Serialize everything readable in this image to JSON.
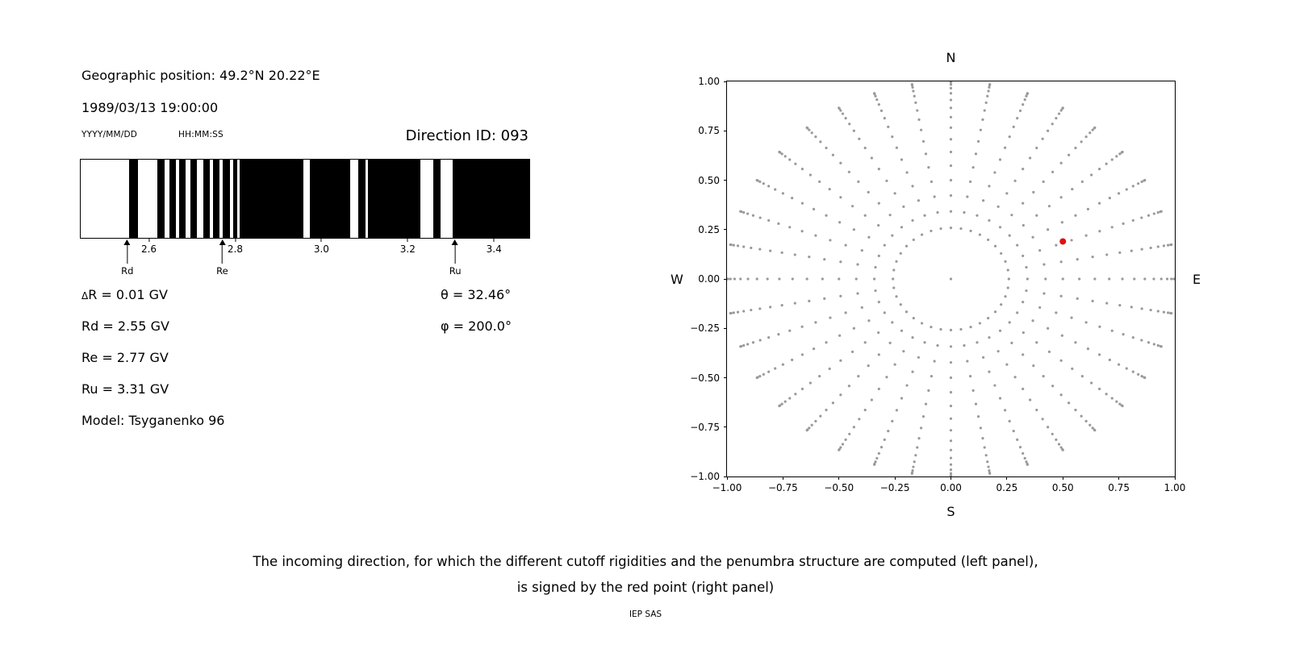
{
  "left_panel": {
    "geo_position": "Geographic position: 49.2°N 20.22°E",
    "datetime": "1989/03/13 19:00:00",
    "date_format_label": "YYYY/MM/DD",
    "time_format_label": "HH:MM:SS",
    "direction_id": "Direction ID: 093",
    "stats": {
      "delta_symbol": "Δ",
      "delta_r_rest": "R = 0.01 GV",
      "rd": "Rd = 2.55 GV",
      "re": "Re = 2.77 GV",
      "ru": "Ru = 3.31 GV",
      "model": "Model: Tsyganenko 96",
      "theta": "θ = 32.46°",
      "phi": "φ = 200.0°"
    }
  },
  "caption": {
    "line1": "The incoming direction, for which the different cutoff rigidities and the penumbra structure are computed (left panel),",
    "line2": "is signed by the red point (right panel)",
    "credit": "IEP SAS"
  },
  "chart_data": [
    {
      "type": "bar",
      "title": "",
      "xlabel": "",
      "xlim": [
        2.44,
        3.48
      ],
      "x_ticks": [
        2.6,
        2.8,
        3.0,
        3.2,
        3.4
      ],
      "x_tick_labels": [
        "2.6",
        "2.8",
        "3.0",
        "3.2",
        "3.4"
      ],
      "black_bands": [
        [
          2.553,
          2.573
        ],
        [
          2.618,
          2.634
        ],
        [
          2.645,
          2.66
        ],
        [
          2.668,
          2.684
        ],
        [
          2.695,
          2.71
        ],
        [
          2.725,
          2.74
        ],
        [
          2.747,
          2.762
        ],
        [
          2.769,
          2.786
        ],
        [
          2.793,
          2.803
        ],
        [
          2.808,
          2.957
        ],
        [
          2.972,
          3.065
        ],
        [
          3.084,
          3.1
        ],
        [
          3.106,
          3.227
        ],
        [
          3.257,
          3.275
        ],
        [
          3.303,
          3.48
        ]
      ],
      "markers": [
        {
          "label": "Rd",
          "x": 2.55
        },
        {
          "label": "Re",
          "x": 2.77
        },
        {
          "label": "Ru",
          "x": 3.31
        }
      ],
      "band_color": "#000000",
      "background_color": "#ffffff"
    },
    {
      "type": "scatter",
      "title": "",
      "xlim": [
        -1,
        1
      ],
      "ylim": [
        -1,
        1
      ],
      "x_ticks": [
        -1,
        -0.75,
        -0.5,
        -0.25,
        0,
        0.25,
        0.5,
        0.75,
        1
      ],
      "x_tick_labels": [
        "−1.00",
        "−0.75",
        "−0.50",
        "−0.25",
        "0.00",
        "0.25",
        "0.50",
        "0.75",
        "1.00"
      ],
      "y_ticks": [
        1,
        0.75,
        0.5,
        0.25,
        0,
        -0.25,
        -0.5,
        -0.75,
        -1
      ],
      "y_tick_labels": [
        "1.00",
        "0.75",
        "0.50",
        "0.25",
        "0.00",
        "−0.25",
        "−0.50",
        "−0.75",
        "−1.00"
      ],
      "direction_labels": {
        "top": "N",
        "bottom": "S",
        "left": "W",
        "right": "E"
      },
      "spokes": {
        "azimuth_start_deg": 0,
        "azimuth_step_deg": 10,
        "azimuth_count": 36,
        "zenith_start_deg": 15,
        "zenith_step_deg": 5,
        "zenith_end_deg": 90,
        "radius_rule": "r = sin(zenith)"
      },
      "center_point": [
        0,
        0
      ],
      "dot_color": "#9a9a9a",
      "red_point": {
        "x": 0.5,
        "y": 0.19,
        "color": "#e01010"
      }
    }
  ]
}
